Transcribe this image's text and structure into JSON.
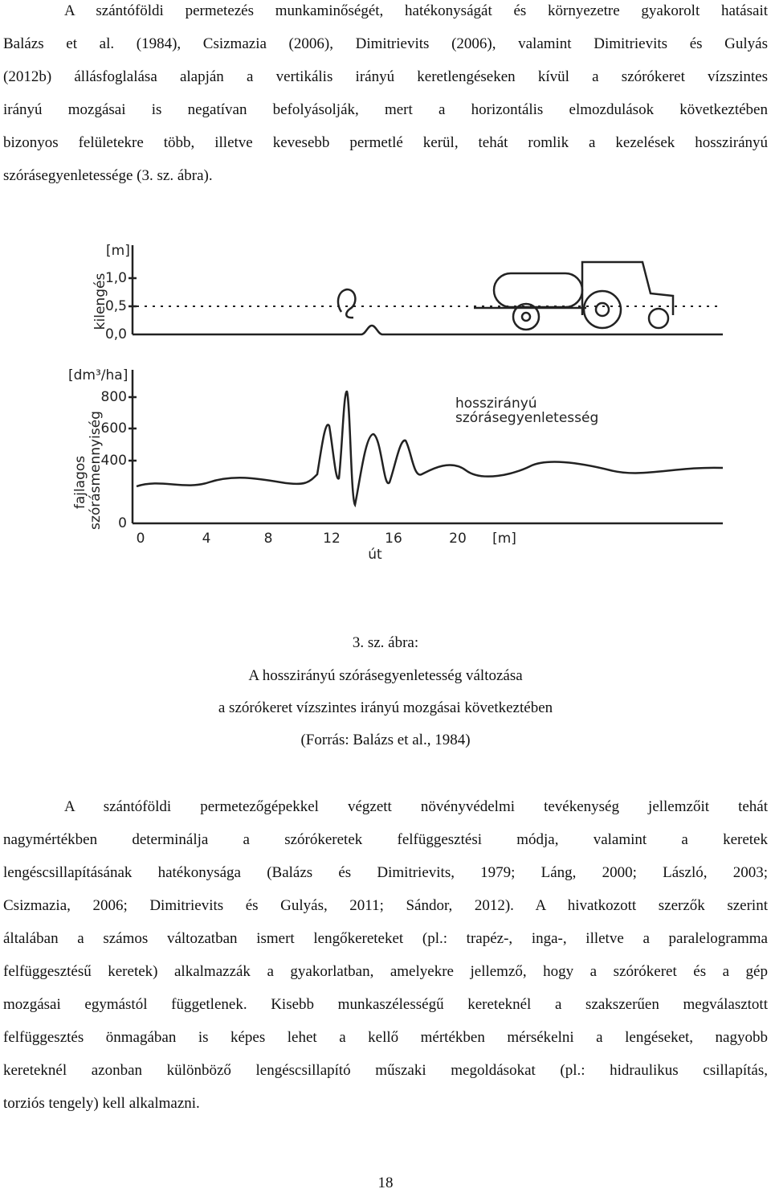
{
  "paragraphs": [
    [
      "A szántóföldi permetezés munkaminőségét, hatékonyságát és környezetre gyakorolt hatásait",
      "Balázs et al. (1984), Csizmazia (2006), Dimitrievits (2006), valamint Dimitrievits és Gulyás",
      "(2012b) állásfoglalása alapján a vertikális irányú keretlengéseken kívül a szórókeret vízszintes",
      "irányú mozgásai is negatívan befolyásolják, mert a horizontális elmozdulások következtében",
      "bizonyos felületekre több, illetve kevesebb permetlé kerül, tehát romlik a kezelések hosszirányú",
      "szórásegyenletessége (3. sz. ábra)."
    ],
    [
      "A szántóföldi permetezőgépekkel végzett növényvédelmi tevékenység jellemzőit tehát",
      "nagymértékben determinálja a szórókeretek felfüggesztési módja, valamint a keretek",
      "lengéscsillapításának hatékonysága (Balázs és Dimitrievits, 1979; Láng, 2000; László, 2003;",
      "Csizmazia, 2006; Dimitrievits és Gulyás, 2011; Sándor, 2012). A hivatkozott szerzők szerint",
      "általában a számos változatban ismert lengőkereteket (pl.: trapéz-, inga-, illetve a paralelogramma",
      "felfüggesztésű keretek) alkalmazzák a gyakorlatban, amelyekre jellemző, hogy a szórókeret és a gép",
      "mozgásai egymástól függetlenek. Kisebb munkaszélességű kereteknél a szakszerűen megválasztott",
      "felfüggesztés önmagában is képes lehet a kellő mértékben mérsékelni a lengéseket, nagyobb",
      "kereteknél azonban különböző lengéscsillapító műszaki megoldásokat (pl.: hidraulikus csillapítás,",
      "torziós tengely) kell alkalmazni."
    ]
  ],
  "figure": {
    "upper_unit": "[m]",
    "upper_ticks": [
      "1,0",
      "0,5",
      "0,0"
    ],
    "upper_axis_label": "kilengés",
    "lower_unit": "[dm³/ha]",
    "lower_ticks": [
      "800",
      "600",
      "400",
      "0"
    ],
    "lower_axis_label_1": "fajlagos",
    "lower_axis_label_2": "szórásmennyiség",
    "curve_label_1": "hosszirányú",
    "curve_label_2": "szórásegyenletesség",
    "x_ticks": [
      "0",
      "4",
      "8",
      "12",
      "16",
      "20"
    ],
    "x_unit": "[m]",
    "x_axis_label": "út"
  },
  "caption": [
    "3. sz. ábra:",
    "A hosszirányú szórásegyenletesség változása",
    "a szórókeret vízszintes irányú mozgásai következtében",
    "(Forrás: Balázs et al., 1984)"
  ],
  "page_number": "18"
}
